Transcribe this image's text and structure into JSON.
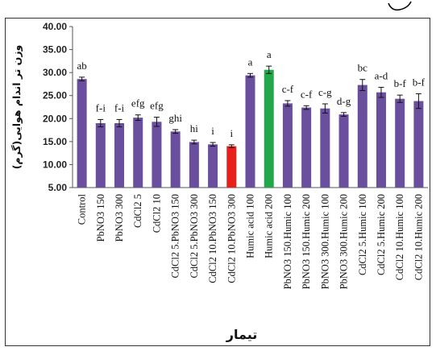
{
  "chart_data": {
    "type": "bar",
    "title": "",
    "xlabel": "تیمار",
    "ylabel": "وزن تر اندام هوایی(گرم)",
    "ylim": [
      5,
      40
    ],
    "ytick_labels": [
      "5.00",
      "10.00",
      "15.00",
      "20.00",
      "25.00",
      "30.00",
      "35.00",
      "40.00"
    ],
    "grid": false,
    "legend": "none",
    "categories": [
      "Control",
      "PbNO3 150",
      "PbNO3 300",
      "CdCl2 5",
      "CdCl2 10",
      "CdCl2 5.PbNO3 150",
      "CdCl2 5.PbNO3 300",
      "CdCl2 10.PbNO3 150",
      "CdCl2 10.PbNO3 300",
      "Humic acid  100",
      "Humic acid  200",
      "PbNO3 150.Humic 100",
      "PbNO3 150.Humic 200",
      "PbNO3 300.Humic 100",
      "PbNO3 300.Humic 200",
      "CdCl2 5.Humic 100",
      "CdCl2 5.Humic 200",
      "CdCl2 10.Humic 100",
      "CdCl2 10.Humic 200"
    ],
    "values": [
      28.6,
      19.0,
      19.0,
      20.2,
      19.3,
      17.2,
      14.9,
      14.4,
      14.0,
      29.4,
      30.6,
      23.3,
      22.4,
      22.2,
      20.9,
      27.3,
      25.7,
      24.3,
      23.8
    ],
    "errors": [
      0.4,
      0.8,
      0.8,
      0.6,
      1.0,
      0.4,
      0.4,
      0.4,
      0.3,
      0.4,
      0.8,
      0.6,
      0.4,
      1.0,
      0.4,
      1.2,
      1.1,
      0.8,
      1.6
    ],
    "letters": [
      "ab",
      "f-i",
      "f-i",
      "efg",
      "efg",
      "ghi",
      "hi",
      "i",
      "i",
      "a",
      "a",
      "c-f",
      "c-f",
      "c-g",
      "d-g",
      "bc",
      "a-d",
      "b-f",
      "b-f"
    ],
    "colors": {
      "default": "#6a4f9e",
      "highlight_red": "#e8201b",
      "highlight_green": "#22a84a",
      "red_index": 8,
      "green_index": 10
    }
  }
}
